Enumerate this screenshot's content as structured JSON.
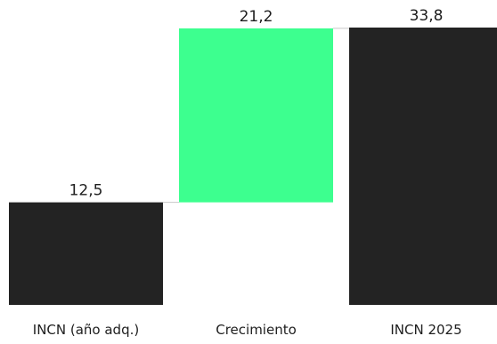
{
  "chart_data": {
    "type": "bar",
    "subtype": "waterfall",
    "categories": [
      "INCN (año adq.)",
      "Crecimiento",
      "INCN 2025"
    ],
    "bars": [
      {
        "category": "INCN (año adq.)",
        "value": 12.5,
        "base": 0,
        "label": "12,5",
        "kind": "total"
      },
      {
        "category": "Crecimiento",
        "value": 21.2,
        "base": 12.5,
        "label": "21,2",
        "kind": "increase"
      },
      {
        "category": "INCN 2025",
        "value": 33.8,
        "base": 0,
        "label": "33,8",
        "kind": "total"
      }
    ],
    "ylim": [
      0,
      33.8
    ],
    "grid": false,
    "legend": "none",
    "colors": {
      "total": "#232323",
      "increase": "#3dff8f",
      "connector": "#c8c8c8",
      "text": "#1e1e1e"
    }
  }
}
